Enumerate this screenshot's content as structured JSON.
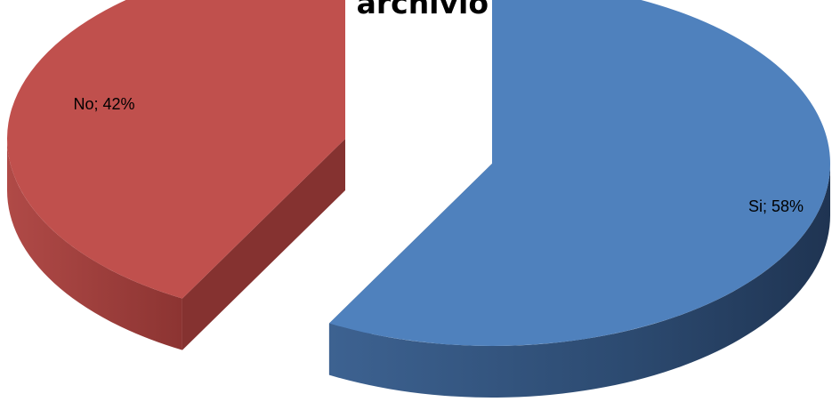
{
  "chart_data": {
    "type": "pie",
    "style": "3d-exploded",
    "title": "d'archivio?",
    "categories": [
      "Si",
      "No"
    ],
    "values": [
      58,
      42
    ],
    "unit": "%",
    "colors": [
      "#4F81BD",
      "#C0504D"
    ],
    "data_labels": [
      "Si; 58%",
      "No; 42%"
    ],
    "legend": "none"
  }
}
